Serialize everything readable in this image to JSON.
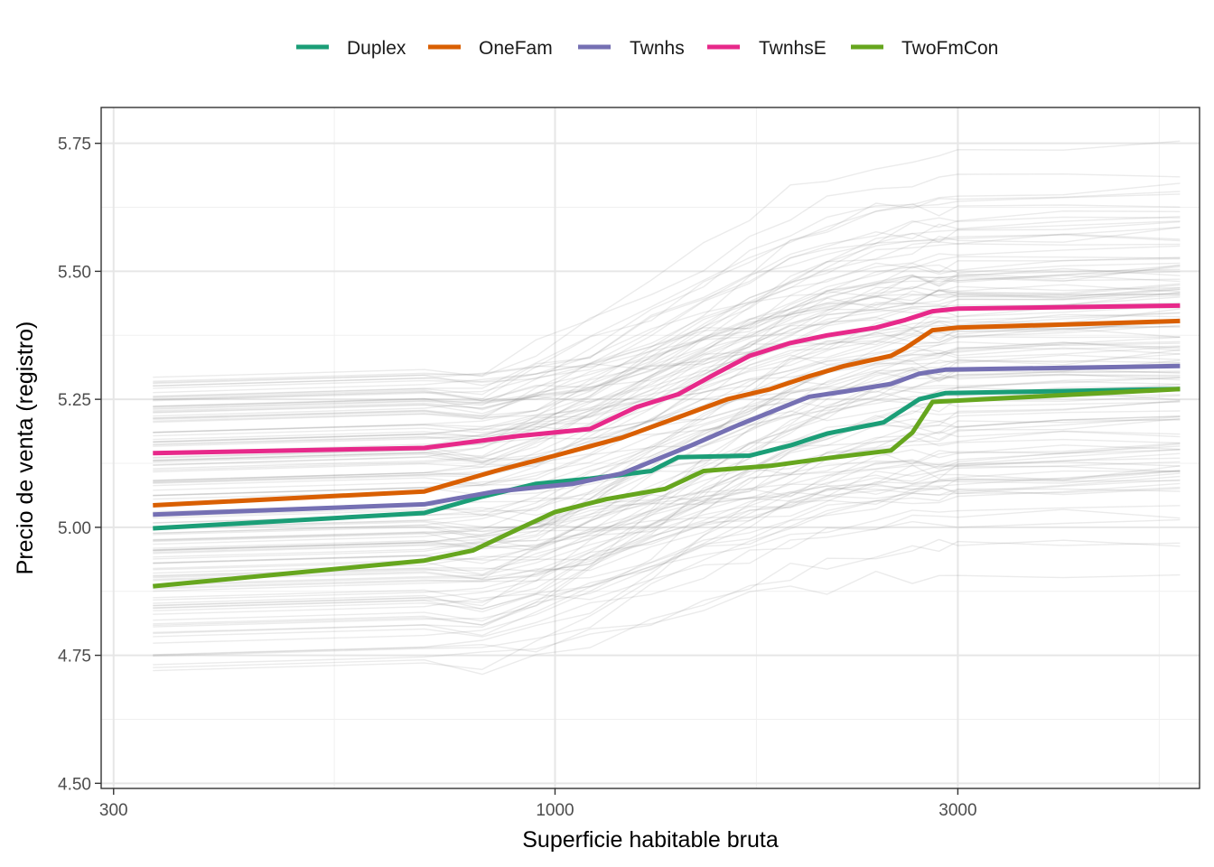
{
  "chart_data": {
    "type": "line",
    "title": "",
    "xlabel": "Superficie habitable bruta",
    "ylabel": "Precio de venta (registro)",
    "x_scale": "log10",
    "xlim": [
      290,
      5800
    ],
    "ylim": [
      4.49,
      5.82
    ],
    "x_ticks": [
      {
        "value": 300,
        "label": "300"
      },
      {
        "value": 1000,
        "label": "1000"
      },
      {
        "value": 3000,
        "label": "3000"
      }
    ],
    "y_ticks": [
      {
        "value": 4.5,
        "label": "4.50"
      },
      {
        "value": 4.75,
        "label": "4.75"
      },
      {
        "value": 5.0,
        "label": "5.00"
      },
      {
        "value": 5.25,
        "label": "5.25"
      },
      {
        "value": 5.5,
        "label": "5.50"
      },
      {
        "value": 5.75,
        "label": "5.75"
      }
    ],
    "grid": true,
    "legend_position": "top",
    "series": [
      {
        "name": "Duplex",
        "color": "#1B9E77",
        "x": [
          334,
          700,
          820,
          950,
          1100,
          1300,
          1400,
          1700,
          1900,
          2100,
          2450,
          2700,
          2900,
          5500
        ],
        "y": [
          4.998,
          5.028,
          5.06,
          5.085,
          5.095,
          5.11,
          5.137,
          5.14,
          5.16,
          5.183,
          5.205,
          5.25,
          5.262,
          5.27
        ]
      },
      {
        "name": "OneFam",
        "color": "#D95F02",
        "x": [
          334,
          700,
          850,
          1000,
          1200,
          1400,
          1600,
          1800,
          2000,
          2200,
          2500,
          2600,
          2800,
          3000,
          5500
        ],
        "y": [
          5.043,
          5.07,
          5.11,
          5.14,
          5.175,
          5.215,
          5.25,
          5.27,
          5.295,
          5.315,
          5.335,
          5.35,
          5.385,
          5.39,
          5.403
        ]
      },
      {
        "name": "Twnhs",
        "color": "#7570B3",
        "x": [
          334,
          700,
          850,
          1050,
          1200,
          1450,
          1650,
          1800,
          2000,
          2200,
          2500,
          2700,
          2900,
          5500
        ],
        "y": [
          5.025,
          5.045,
          5.07,
          5.085,
          5.105,
          5.16,
          5.2,
          5.225,
          5.255,
          5.265,
          5.28,
          5.3,
          5.308,
          5.315
        ]
      },
      {
        "name": "TwnhsE",
        "color": "#E7298A",
        "x": [
          334,
          700,
          900,
          1100,
          1250,
          1400,
          1550,
          1700,
          1900,
          2100,
          2400,
          2600,
          2800,
          3000,
          5500
        ],
        "y": [
          5.145,
          5.155,
          5.178,
          5.192,
          5.235,
          5.26,
          5.3,
          5.335,
          5.36,
          5.375,
          5.39,
          5.405,
          5.422,
          5.427,
          5.433
        ]
      },
      {
        "name": "TwoFmCon",
        "color": "#66A61E",
        "x": [
          334,
          700,
          800,
          900,
          1000,
          1150,
          1350,
          1500,
          1800,
          2100,
          2500,
          2650,
          2800,
          5500
        ],
        "y": [
          4.885,
          4.935,
          4.955,
          4.995,
          5.03,
          5.055,
          5.075,
          5.11,
          5.12,
          5.135,
          5.15,
          5.185,
          5.245,
          5.27
        ]
      }
    ],
    "background_curves": {
      "description": "individual conditional expectation curves",
      "count": 130,
      "color": "#808080"
    }
  }
}
